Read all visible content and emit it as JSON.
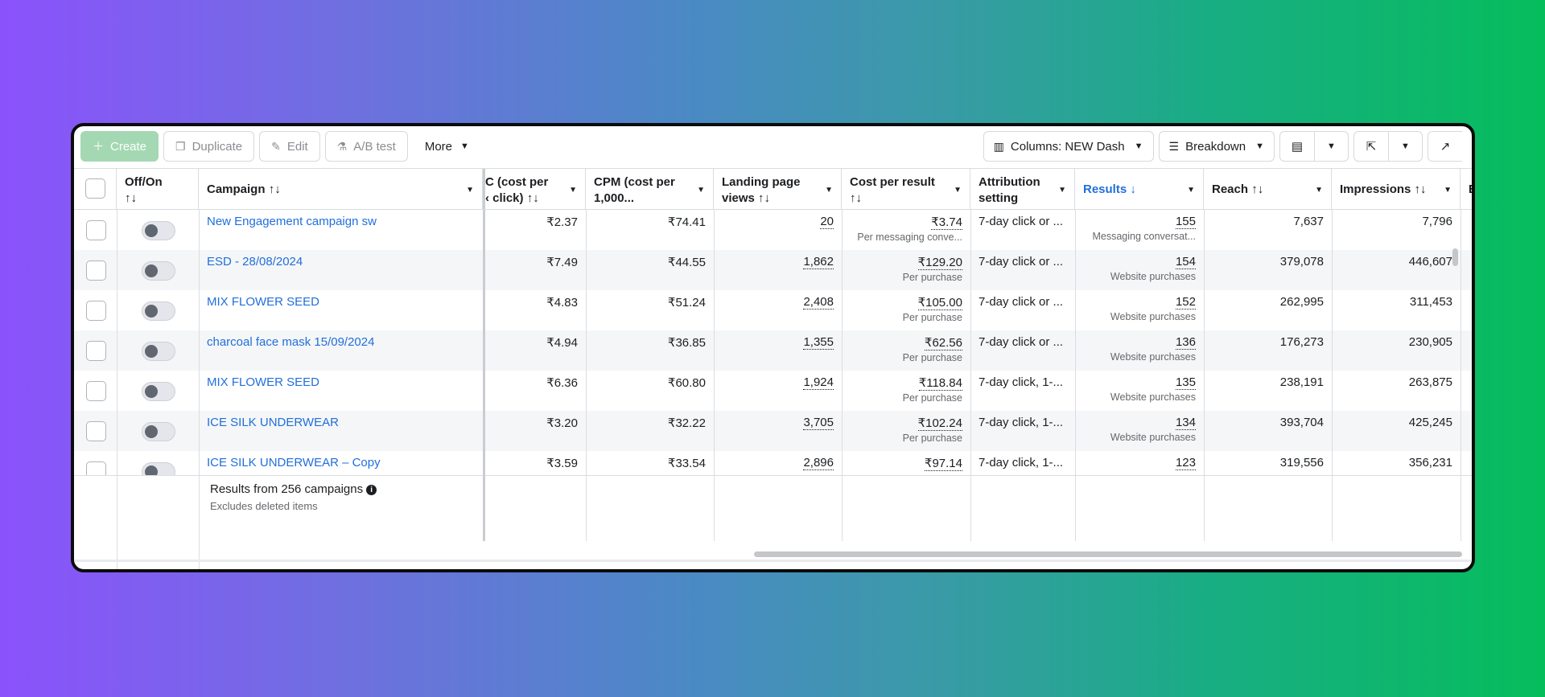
{
  "toolbar": {
    "create": "Create",
    "duplicate": "Duplicate",
    "edit": "Edit",
    "ab_test": "A/B test",
    "more": "More",
    "columns": "Columns: NEW Dash",
    "breakdown": "Breakdown"
  },
  "headers": {
    "offon": "Off/On",
    "campaign": "Campaign",
    "cpc": "C (cost per ‹ click)",
    "cpc_l1": "C (cost per",
    "cpc_l2": "‹ click)",
    "cpm_l1": "CPM (cost per",
    "cpm_l2": "1,000...",
    "lpv_l1": "Landing page",
    "lpv_l2": "views",
    "cpr_l1": "Cost per result",
    "attr_l1": "Attribution",
    "attr_l2": "setting",
    "results": "Results",
    "reach": "Reach",
    "impressions": "Impressions",
    "next": "E"
  },
  "rows": [
    {
      "campaign": "New Engagement campaign sw",
      "cpc": "₹2.37",
      "cpm": "₹74.41",
      "lpv": "20",
      "cpr": "₹3.74",
      "cpr_sub": "Per messaging conve...",
      "attr": "7-day click or ...",
      "results": "155",
      "results_sub": "Messaging conversat...",
      "reach": "7,637",
      "impressions": "7,796"
    },
    {
      "campaign": "ESD - 28/08/2024",
      "cpc": "₹7.49",
      "cpm": "₹44.55",
      "lpv": "1,862",
      "cpr": "₹129.20",
      "cpr_sub": "Per purchase",
      "attr": "7-day click or ...",
      "results": "154",
      "results_sub": "Website purchases",
      "reach": "379,078",
      "impressions": "446,607"
    },
    {
      "campaign": "MIX FLOWER SEED",
      "cpc": "₹4.83",
      "cpm": "₹51.24",
      "lpv": "2,408",
      "cpr": "₹105.00",
      "cpr_sub": "Per purchase",
      "attr": "7-day click or ...",
      "results": "152",
      "results_sub": "Website purchases",
      "reach": "262,995",
      "impressions": "311,453"
    },
    {
      "campaign": "charcoal face mask 15/09/2024",
      "cpc": "₹4.94",
      "cpm": "₹36.85",
      "lpv": "1,355",
      "cpr": "₹62.56",
      "cpr_sub": "Per purchase",
      "attr": "7-day click or ...",
      "results": "136",
      "results_sub": "Website purchases",
      "reach": "176,273",
      "impressions": "230,905"
    },
    {
      "campaign": "MIX FLOWER SEED",
      "cpc": "₹6.36",
      "cpm": "₹60.80",
      "lpv": "1,924",
      "cpr": "₹118.84",
      "cpr_sub": "Per purchase",
      "attr": "7-day click, 1-...",
      "results": "135",
      "results_sub": "Website purchases",
      "reach": "238,191",
      "impressions": "263,875"
    },
    {
      "campaign": "ICE SILK UNDERWEAR",
      "cpc": "₹3.20",
      "cpm": "₹32.22",
      "lpv": "3,705",
      "cpr": "₹102.24",
      "cpr_sub": "Per purchase",
      "attr": "7-day click, 1-...",
      "results": "134",
      "results_sub": "Website purchases",
      "reach": "393,704",
      "impressions": "425,245"
    },
    {
      "campaign": "ICE SILK UNDERWEAR – Copy",
      "cpc": "₹3.59",
      "cpm": "₹33.54",
      "lpv": "2,896",
      "cpr": "₹97.14",
      "cpr_sub": "",
      "attr": "7-day click, 1-...",
      "results": "123",
      "results_sub": "",
      "reach": "319,556",
      "impressions": "356,231"
    }
  ],
  "footer": {
    "results_text": "Results from 256 campaigns",
    "excludes": "Excludes deleted items"
  }
}
